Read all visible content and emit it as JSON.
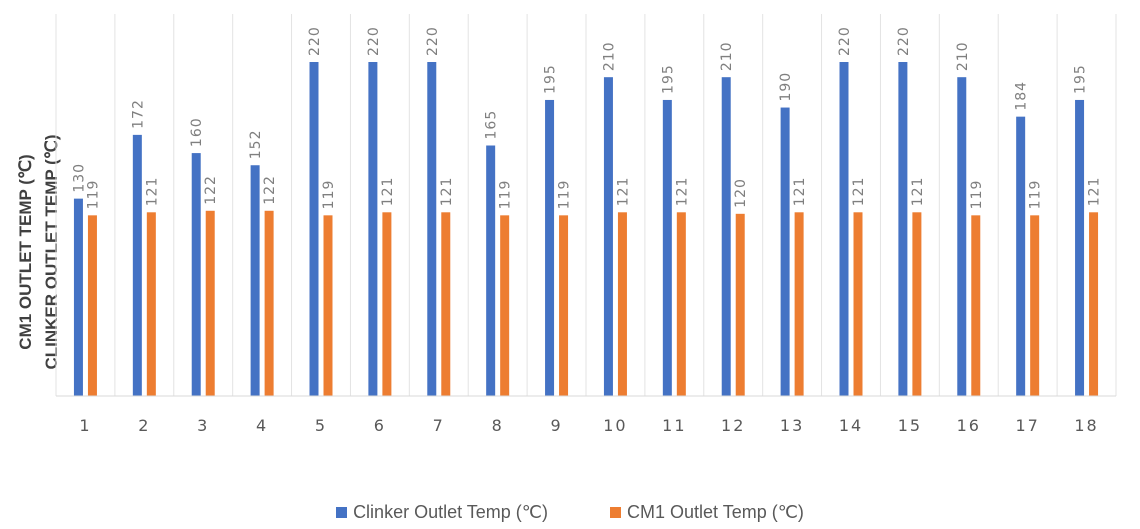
{
  "chart_data": {
    "type": "bar",
    "categories": [
      "1",
      "2",
      "3",
      "4",
      "5",
      "6",
      "7",
      "8",
      "9",
      "10",
      "11",
      "12",
      "13",
      "14",
      "15",
      "16",
      "17",
      "18"
    ],
    "series": [
      {
        "name": "Clinker Outlet Temp (℃)",
        "color": "#4472c4",
        "values": [
          130,
          172,
          160,
          152,
          220,
          220,
          220,
          165,
          195,
          210,
          195,
          210,
          190,
          220,
          220,
          210,
          184,
          195
        ]
      },
      {
        "name": "CM1 Outlet Temp (℃)",
        "color": "#ed7d31",
        "values": [
          119,
          121,
          122,
          122,
          119,
          121,
          121,
          119,
          119,
          121,
          121,
          120,
          121,
          121,
          121,
          119,
          119,
          121
        ]
      }
    ],
    "ylabel_lines": [
      "CLINKER OUTLET TEMP (℃)",
      "CM1 OUTLET TEMP (℃)"
    ],
    "ylim": [
      0,
      220
    ],
    "grid": "vertical separators only",
    "data_labels": true,
    "legend_position": "bottom"
  }
}
